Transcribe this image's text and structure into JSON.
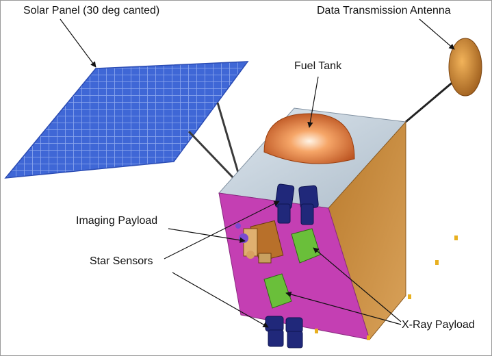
{
  "labels": {
    "solar_panel": "Solar Panel (30 deg canted)",
    "antenna": "Data Transmission Antenna",
    "fuel_tank": "Fuel Tank",
    "imaging_payload": "Imaging Payload",
    "star_sensors": "Star Sensors",
    "xray_payload": "X-Ray Payload"
  },
  "colors": {
    "panel": "#3f67d6",
    "bus_top": "#c5cfd8",
    "bus_front": "#c43fb3",
    "bus_side": "#c08a3c",
    "fuel_tank": "#e0753a",
    "xray": "#6abf3a",
    "star_sensor": "#20287a"
  }
}
